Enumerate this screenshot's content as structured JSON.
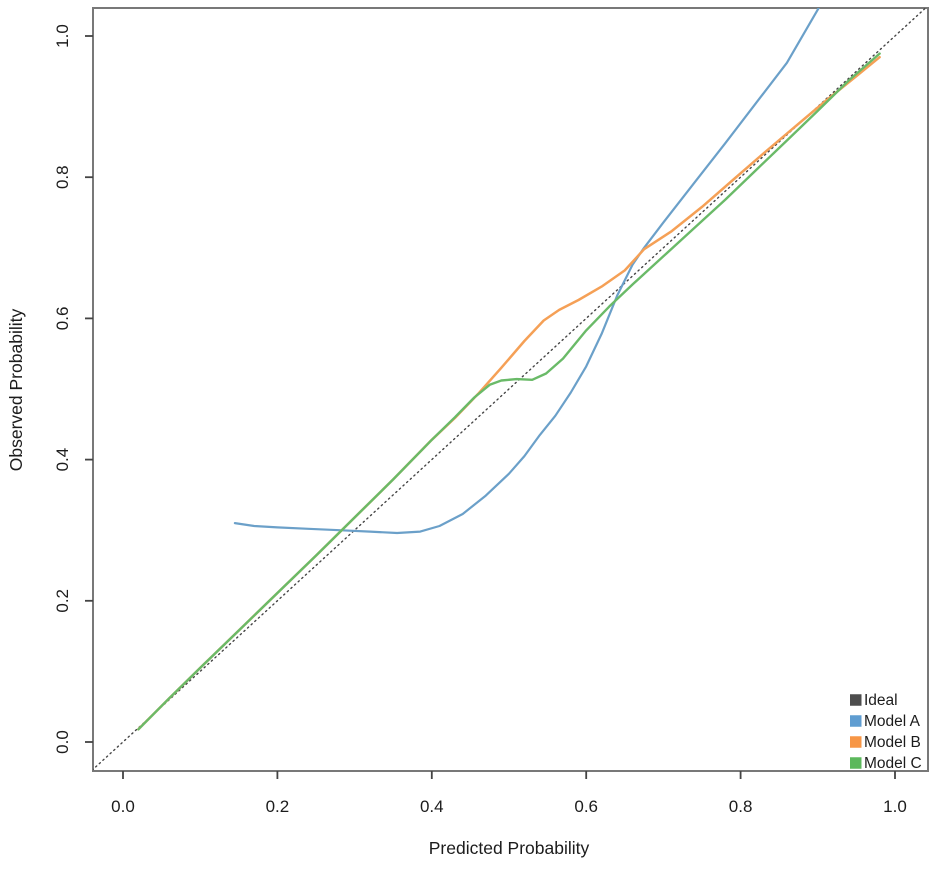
{
  "figure_title": "",
  "chart_data": {
    "type": "line",
    "title": "",
    "xlabel": "Predicted Probability",
    "ylabel": "Observed Probability",
    "xlim": [
      -0.04,
      1.04
    ],
    "ylim": [
      -0.04,
      1.04
    ],
    "xticks": [
      0.0,
      0.2,
      0.4,
      0.6,
      0.8,
      1.0
    ],
    "yticks": [
      0.0,
      0.2,
      0.4,
      0.6,
      0.8,
      1.0
    ],
    "grid": false,
    "legend_position": "bottom-right",
    "series": [
      {
        "name": "Ideal",
        "color": "#454545",
        "swatch": "#4d4d4d",
        "line_style": "dotted",
        "width": 1.4,
        "points": [
          [
            -0.04,
            -0.04
          ],
          [
            1.043,
            1.043
          ]
        ]
      },
      {
        "name": "Model A",
        "color": "#6ba0c9",
        "swatch": "#5f9dd1",
        "line_style": "solid",
        "width": 2.2,
        "points": [
          [
            0.145,
            0.31
          ],
          [
            0.17,
            0.306
          ],
          [
            0.2,
            0.304
          ],
          [
            0.24,
            0.302
          ],
          [
            0.28,
            0.3
          ],
          [
            0.32,
            0.298
          ],
          [
            0.355,
            0.296
          ],
          [
            0.385,
            0.298
          ],
          [
            0.41,
            0.306
          ],
          [
            0.44,
            0.323
          ],
          [
            0.47,
            0.349
          ],
          [
            0.5,
            0.38
          ],
          [
            0.52,
            0.405
          ],
          [
            0.54,
            0.435
          ],
          [
            0.56,
            0.462
          ],
          [
            0.58,
            0.495
          ],
          [
            0.6,
            0.532
          ],
          [
            0.62,
            0.578
          ],
          [
            0.64,
            0.632
          ],
          [
            0.66,
            0.676
          ],
          [
            0.675,
            0.7
          ],
          [
            0.7,
            0.736
          ],
          [
            0.74,
            0.792
          ],
          [
            0.78,
            0.848
          ],
          [
            0.82,
            0.905
          ],
          [
            0.86,
            0.962
          ],
          [
            0.903,
            1.043
          ]
        ]
      },
      {
        "name": "Model B",
        "color": "#f5a056",
        "swatch": "#f79646",
        "line_style": "solid",
        "width": 2.5,
        "points": [
          [
            0.02,
            0.018
          ],
          [
            0.06,
            0.062
          ],
          [
            0.1,
            0.105
          ],
          [
            0.15,
            0.158
          ],
          [
            0.2,
            0.211
          ],
          [
            0.25,
            0.264
          ],
          [
            0.3,
            0.318
          ],
          [
            0.35,
            0.372
          ],
          [
            0.4,
            0.428
          ],
          [
            0.43,
            0.459
          ],
          [
            0.46,
            0.493
          ],
          [
            0.49,
            0.53
          ],
          [
            0.52,
            0.568
          ],
          [
            0.545,
            0.597
          ],
          [
            0.565,
            0.612
          ],
          [
            0.59,
            0.626
          ],
          [
            0.62,
            0.645
          ],
          [
            0.65,
            0.668
          ],
          [
            0.675,
            0.698
          ],
          [
            0.71,
            0.723
          ],
          [
            0.75,
            0.758
          ],
          [
            0.79,
            0.796
          ],
          [
            0.83,
            0.834
          ],
          [
            0.87,
            0.871
          ],
          [
            0.91,
            0.908
          ],
          [
            0.95,
            0.943
          ],
          [
            0.98,
            0.97
          ]
        ]
      },
      {
        "name": "Model C",
        "color": "#6aba68",
        "swatch": "#5cb85c",
        "line_style": "solid",
        "width": 2.4,
        "points": [
          [
            0.02,
            0.018
          ],
          [
            0.06,
            0.062
          ],
          [
            0.1,
            0.105
          ],
          [
            0.15,
            0.158
          ],
          [
            0.2,
            0.211
          ],
          [
            0.25,
            0.264
          ],
          [
            0.3,
            0.318
          ],
          [
            0.35,
            0.372
          ],
          [
            0.4,
            0.428
          ],
          [
            0.43,
            0.46
          ],
          [
            0.455,
            0.488
          ],
          [
            0.475,
            0.506
          ],
          [
            0.49,
            0.512
          ],
          [
            0.51,
            0.514
          ],
          [
            0.53,
            0.513
          ],
          [
            0.548,
            0.522
          ],
          [
            0.57,
            0.543
          ],
          [
            0.6,
            0.583
          ],
          [
            0.63,
            0.617
          ],
          [
            0.66,
            0.648
          ],
          [
            0.7,
            0.688
          ],
          [
            0.74,
            0.728
          ],
          [
            0.78,
            0.768
          ],
          [
            0.82,
            0.81
          ],
          [
            0.86,
            0.852
          ],
          [
            0.9,
            0.894
          ],
          [
            0.94,
            0.937
          ],
          [
            0.98,
            0.975
          ]
        ]
      }
    ],
    "legend_entries": [
      "Ideal",
      "Model A",
      "Model B",
      "Model C"
    ]
  }
}
